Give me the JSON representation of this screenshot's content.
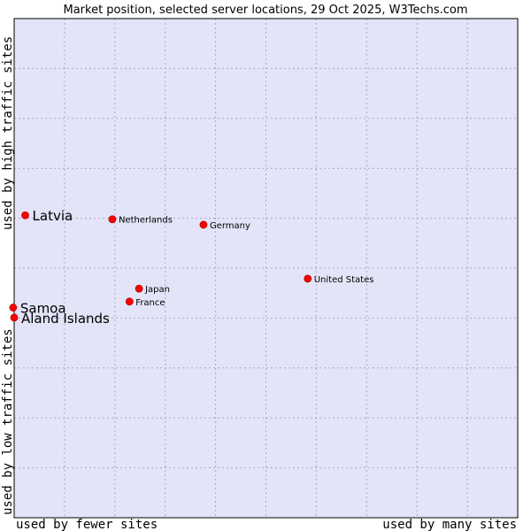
{
  "chart_data": {
    "type": "scatter",
    "title": "Market position, selected server locations, 29 Oct 2025, W3Techs.com",
    "xlabel_left": "used by fewer sites",
    "xlabel_right": "used by many sites",
    "ylabel_bottom": "used by low traffic sites",
    "ylabel_top": "used by high traffic sites",
    "grid": true,
    "xlim": [
      0,
      100
    ],
    "ylim": [
      0,
      100
    ],
    "colors": {
      "plot_bg": "#e4e4f8",
      "grid": "#a8a8c0",
      "point": "#ff0000",
      "border": "#000000"
    },
    "points": [
      {
        "name": "Latvia",
        "x": 2.2,
        "y": 60.6,
        "highlight": true
      },
      {
        "name": "Netherlands",
        "x": 19.5,
        "y": 59.8,
        "highlight": false
      },
      {
        "name": "Germany",
        "x": 37.6,
        "y": 58.7,
        "highlight": false
      },
      {
        "name": "United States",
        "x": 58.3,
        "y": 47.9,
        "highlight": false
      },
      {
        "name": "Japan",
        "x": 24.8,
        "y": 45.9,
        "highlight": false
      },
      {
        "name": "France",
        "x": 22.9,
        "y": 43.3,
        "highlight": false
      },
      {
        "name": "Samoa",
        "x": -0.2,
        "y": 42.1,
        "highlight": true
      },
      {
        "name": "Aland Islands",
        "x": 0.0,
        "y": 40.1,
        "highlight": true
      }
    ]
  }
}
